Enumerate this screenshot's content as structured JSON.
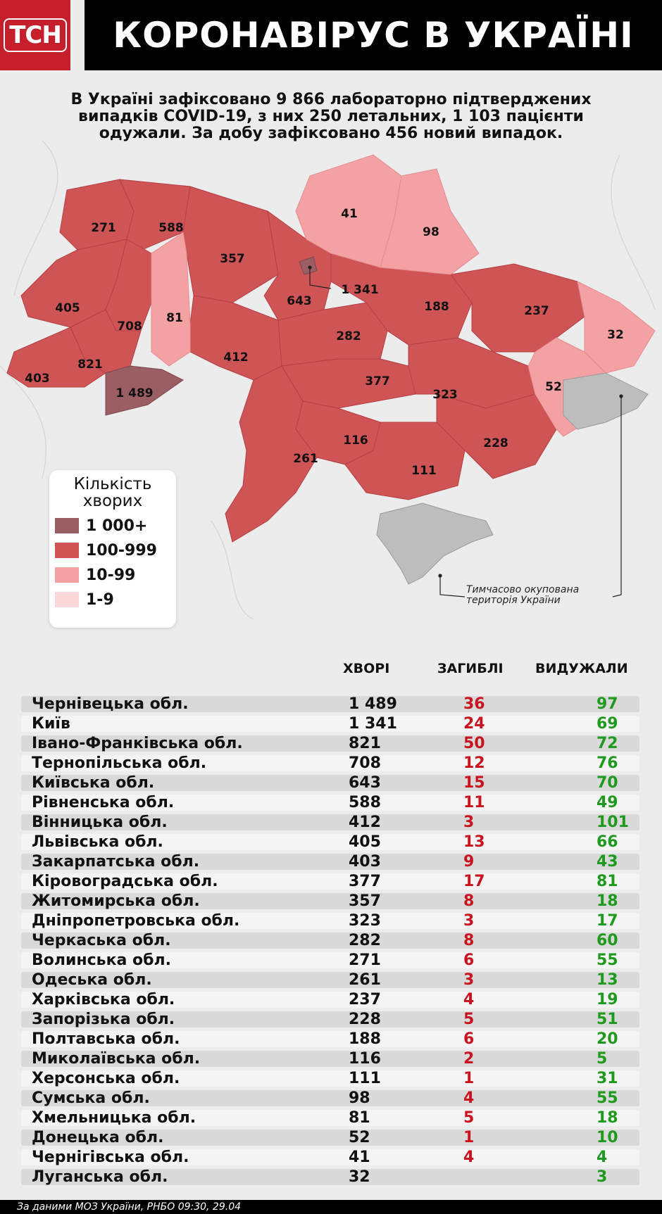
{
  "header": {
    "logo_text": "ТСН",
    "title": "КОРОНАВІРУС В УКРАЇНІ"
  },
  "summary": {
    "line1": "В Україні зафіксовано 9 866 лабораторно підтверджених",
    "line2": "випадків COVID-19, з них 250 летальних, 1 103 пацієнти",
    "line3": "одужали. За добу зафіксовано 456 новий випадок."
  },
  "map": {
    "labels": [
      "271",
      "588",
      "357",
      "41",
      "98",
      "1 341",
      "643",
      "188",
      "237",
      "405",
      "708",
      "81",
      "282",
      "32",
      "412",
      "821",
      "377",
      "52",
      "403",
      "1 489",
      "323",
      "116",
      "228",
      "261",
      "111"
    ],
    "occupied_note_line1": "Тимчасово окупована",
    "occupied_note_line2": "територія України"
  },
  "legend": {
    "title_line1": "Кількість",
    "title_line2": "хворих",
    "items": [
      {
        "label": "1 000+",
        "color": "#9b5e65"
      },
      {
        "label": "100-999",
        "color": "#cf5456"
      },
      {
        "label": "10-99",
        "color": "#f4a1a4"
      },
      {
        "label": "1-9",
        "color": "#fad8d9"
      }
    ]
  },
  "table": {
    "headers": {
      "sick": "ХВОРІ",
      "dead": "ЗАГИБЛІ",
      "recovered": "ВИДУЖАЛИ"
    },
    "rows": [
      {
        "region": "Чернівецька обл.",
        "sick": "1 489",
        "dead": "36",
        "recovered": "97"
      },
      {
        "region": "Київ",
        "sick": "1 341",
        "dead": "24",
        "recovered": "69"
      },
      {
        "region": "Івано-Франківська обл.",
        "sick": "821",
        "dead": "50",
        "recovered": "72"
      },
      {
        "region": "Тернопільська обл.",
        "sick": "708",
        "dead": "12",
        "recovered": "76"
      },
      {
        "region": "Київська обл.",
        "sick": "643",
        "dead": "15",
        "recovered": "70"
      },
      {
        "region": "Рівненська обл.",
        "sick": "588",
        "dead": "11",
        "recovered": "49"
      },
      {
        "region": "Вінницька обл.",
        "sick": "412",
        "dead": "3",
        "recovered": "101"
      },
      {
        "region": "Львівська обл.",
        "sick": "405",
        "dead": "13",
        "recovered": "66"
      },
      {
        "region": "Закарпатська обл.",
        "sick": "403",
        "dead": "9",
        "recovered": "43"
      },
      {
        "region": "Кіровоградська обл.",
        "sick": "377",
        "dead": "17",
        "recovered": "81"
      },
      {
        "region": "Житомирська обл.",
        "sick": "357",
        "dead": "8",
        "recovered": "18"
      },
      {
        "region": "Дніпропетровська обл.",
        "sick": "323",
        "dead": "3",
        "recovered": "17"
      },
      {
        "region": "Черкаська обл.",
        "sick": "282",
        "dead": "8",
        "recovered": "60"
      },
      {
        "region": "Волинська обл.",
        "sick": "271",
        "dead": "6",
        "recovered": "55"
      },
      {
        "region": "Одеська обл.",
        "sick": "261",
        "dead": "3",
        "recovered": "13"
      },
      {
        "region": "Харківська обл.",
        "sick": "237",
        "dead": "4",
        "recovered": "19"
      },
      {
        "region": "Запорізька обл.",
        "sick": "228",
        "dead": "5",
        "recovered": "51"
      },
      {
        "region": "Полтавська обл.",
        "sick": "188",
        "dead": "6",
        "recovered": "20"
      },
      {
        "region": "Миколаївська обл.",
        "sick": "116",
        "dead": "2",
        "recovered": "5"
      },
      {
        "region": "Херсонська обл.",
        "sick": "111",
        "dead": "1",
        "recovered": "31"
      },
      {
        "region": "Сумська обл.",
        "sick": "98",
        "dead": "4",
        "recovered": "55"
      },
      {
        "region": "Хмельницька обл.",
        "sick": "81",
        "dead": "5",
        "recovered": "18"
      },
      {
        "region": "Донецька обл.",
        "sick": "52",
        "dead": "1",
        "recovered": "10"
      },
      {
        "region": "Чернігівська обл.",
        "sick": "41",
        "dead": "4",
        "recovered": "4"
      },
      {
        "region": "Луганська обл.",
        "sick": "32",
        "dead": "",
        "recovered": "3"
      }
    ]
  },
  "footer": {
    "source": "За даними МОЗ України, РНБО  09:30, 29.04"
  }
}
